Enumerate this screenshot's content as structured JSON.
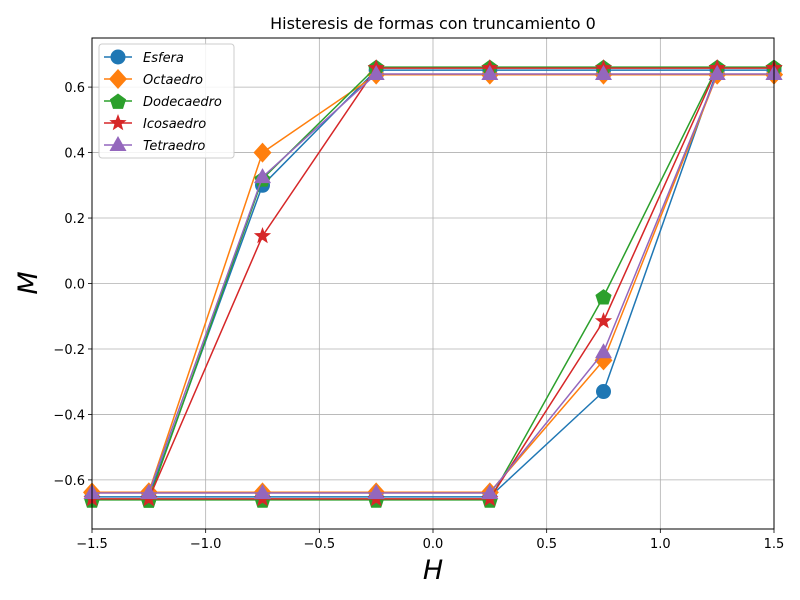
{
  "chart_data": {
    "type": "line",
    "title": "Histeresis de formas con truncamiento 0",
    "xlabel": "H",
    "ylabel": "M",
    "xlim": [
      -1.5,
      1.5
    ],
    "ylim": [
      -0.75,
      0.75
    ],
    "xticks": [
      -1.5,
      -1.0,
      -0.5,
      0.0,
      0.5,
      1.0,
      1.5
    ],
    "xtick_labels": [
      "−1.5",
      "−1.0",
      "−0.5",
      "0.0",
      "0.5",
      "1.0",
      "1.5"
    ],
    "yticks": [
      -0.6,
      -0.4,
      -0.2,
      0.0,
      0.2,
      0.4,
      0.6
    ],
    "ytick_labels": [
      "−0.6",
      "−0.4",
      "−0.2",
      "0.0",
      "0.2",
      "0.4",
      "0.6"
    ],
    "grid": true,
    "legend_position": "top-left",
    "x": [
      1.5,
      1.25,
      0.75,
      0.25,
      -0.25,
      -0.75,
      -1.25,
      -1.5,
      -1.25,
      -0.75,
      -0.25,
      0.25,
      0.75,
      1.25,
      1.5
    ],
    "series": [
      {
        "name": "Esfera",
        "color": "#1f77b4",
        "marker": "circle",
        "values": [
          0.652,
          0.652,
          0.652,
          0.652,
          0.652,
          0.3,
          -0.652,
          -0.652,
          -0.652,
          -0.652,
          -0.652,
          -0.652,
          -0.33,
          0.652,
          0.652
        ]
      },
      {
        "name": "Octaedro",
        "color": "#ff7f0e",
        "marker": "diamond",
        "values": [
          0.638,
          0.638,
          0.638,
          0.638,
          0.638,
          0.4,
          -0.638,
          -0.638,
          -0.638,
          -0.638,
          -0.638,
          -0.638,
          -0.235,
          0.638,
          0.638
        ]
      },
      {
        "name": "Dodecaedro",
        "color": "#2ca02c",
        "marker": "pentagon",
        "values": [
          0.661,
          0.661,
          0.661,
          0.661,
          0.661,
          0.32,
          -0.661,
          -0.661,
          -0.661,
          -0.661,
          -0.661,
          -0.661,
          -0.04,
          0.661,
          0.661
        ]
      },
      {
        "name": "Icosaedro",
        "color": "#d62728",
        "marker": "star",
        "values": [
          0.658,
          0.658,
          0.658,
          0.658,
          0.658,
          0.145,
          -0.658,
          -0.658,
          -0.658,
          -0.658,
          -0.658,
          -0.658,
          -0.115,
          0.658,
          0.658
        ]
      },
      {
        "name": "Tetraedro",
        "color": "#9467bd",
        "marker": "triangle",
        "values": [
          0.64,
          0.64,
          0.64,
          0.64,
          0.64,
          0.325,
          -0.64,
          -0.64,
          -0.64,
          -0.64,
          -0.64,
          -0.64,
          -0.21,
          0.64,
          0.64
        ]
      }
    ]
  }
}
